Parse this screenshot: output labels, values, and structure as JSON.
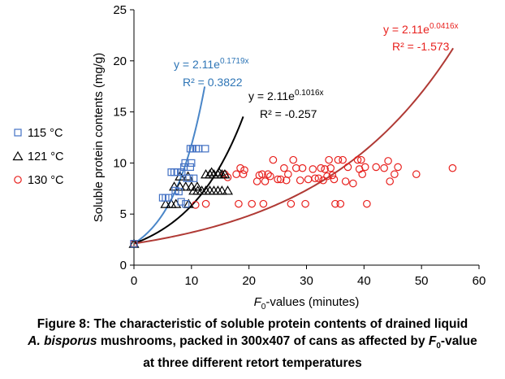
{
  "chart_data": {
    "type": "scatter",
    "xlabel_main": "F",
    "xlabel_sub": "0",
    "xlabel_rest": "-values (minutes)",
    "ylabel": "Soluble protein contents (mg/g)",
    "xlim": [
      0,
      60
    ],
    "ylim": [
      0,
      25
    ],
    "xticks": [
      0,
      10,
      20,
      30,
      40,
      50,
      60
    ],
    "yticks": [
      0,
      5,
      10,
      15,
      20,
      25
    ],
    "legend_position": "left",
    "series": [
      {
        "name": "115 °C",
        "marker": "square",
        "color": "#4472C4",
        "trend_color": "#4A86C8",
        "trend_a": 2.11,
        "trend_b": 0.1719,
        "trend_xmax": 12.3,
        "eq_base": "y = 2.11e",
        "eq_exp": "0.1719x",
        "r2": "R² = 0.3822",
        "points": [
          [
            0,
            2.1
          ],
          [
            5,
            6.6
          ],
          [
            5.5,
            6.6
          ],
          [
            6,
            6.6
          ],
          [
            6.5,
            9.1
          ],
          [
            7,
            9.1
          ],
          [
            7.5,
            9.1
          ],
          [
            7.2,
            7.3
          ],
          [
            7.8,
            7.2
          ],
          [
            8.3,
            9.1
          ],
          [
            8.7,
            9.6
          ],
          [
            8.9,
            10
          ],
          [
            9.2,
            8.5
          ],
          [
            9.6,
            8.5
          ],
          [
            9.8,
            9.6
          ],
          [
            10,
            10
          ],
          [
            10.4,
            8.5
          ],
          [
            10.2,
            11.4
          ],
          [
            10.8,
            11.4
          ],
          [
            9.8,
            11.4
          ],
          [
            11.2,
            11.4
          ],
          [
            12.4,
            11.4
          ],
          [
            8.2,
            6.2
          ],
          [
            9,
            6.0
          ]
        ]
      },
      {
        "name": "121 °C",
        "marker": "triangle",
        "color": "#000000",
        "trend_color": "#000000",
        "trend_a": 2.11,
        "trend_b": 0.1016,
        "trend_xmax": 19.0,
        "eq_base": "y = 2.11e",
        "eq_exp": "0.1016x",
        "r2": "R² = -0.257",
        "points": [
          [
            0,
            2.1
          ],
          [
            5.5,
            6.0
          ],
          [
            6.5,
            6.0
          ],
          [
            7.3,
            6.0
          ],
          [
            9.5,
            6.0
          ],
          [
            7,
            7.7
          ],
          [
            8,
            7.7
          ],
          [
            9,
            7.7
          ],
          [
            10,
            7.7
          ],
          [
            11,
            7.7
          ],
          [
            8,
            8.7
          ],
          [
            9.4,
            8.7
          ],
          [
            10.4,
            7.3
          ],
          [
            11.1,
            7.3
          ],
          [
            11.8,
            7.3
          ],
          [
            12.5,
            7.3
          ],
          [
            13.2,
            7.3
          ],
          [
            13.9,
            7.3
          ],
          [
            14.6,
            7.3
          ],
          [
            15.3,
            7.3
          ],
          [
            12.5,
            8.9
          ],
          [
            13.2,
            8.9
          ],
          [
            13.9,
            8.9
          ],
          [
            14.6,
            8.9
          ],
          [
            15.3,
            8.9
          ],
          [
            13.5,
            9.1
          ],
          [
            14.8,
            9.1
          ],
          [
            15.8,
            8.9
          ],
          [
            16.3,
            7.3
          ]
        ]
      },
      {
        "name": "130 °C",
        "marker": "circle",
        "color": "#E8211E",
        "trend_color": "#B03A35",
        "trend_a": 2.11,
        "trend_b": 0.0416,
        "trend_xmax": 55.5,
        "eq_base": "y = 2.11e",
        "eq_exp": "0.0416x",
        "r2": "R² = -1.573",
        "points": [
          [
            0,
            2.1
          ],
          [
            10.7,
            5.9
          ],
          [
            12.5,
            6.0
          ],
          [
            15.8,
            8.9
          ],
          [
            16.3,
            8.6
          ],
          [
            17.8,
            8.9
          ],
          [
            18.2,
            6.0
          ],
          [
            18.5,
            9.5
          ],
          [
            19,
            8.9
          ],
          [
            19.2,
            9.3
          ],
          [
            20.5,
            6.0
          ],
          [
            21.4,
            8.2
          ],
          [
            21.8,
            8.8
          ],
          [
            22.3,
            8.9
          ],
          [
            22.5,
            6.0
          ],
          [
            22.8,
            8.2
          ],
          [
            23.3,
            8.9
          ],
          [
            23.7,
            8.7
          ],
          [
            24.2,
            10.3
          ],
          [
            25,
            8.4
          ],
          [
            25.5,
            8.4
          ],
          [
            26.1,
            9.5
          ],
          [
            26.5,
            8.3
          ],
          [
            26.8,
            8.9
          ],
          [
            27.3,
            6.0
          ],
          [
            27.7,
            10.3
          ],
          [
            28.2,
            9.5
          ],
          [
            28.9,
            8.3
          ],
          [
            29.3,
            9.5
          ],
          [
            29.8,
            6.0
          ],
          [
            30.3,
            8.4
          ],
          [
            31.1,
            9.4
          ],
          [
            31.5,
            8.5
          ],
          [
            32.1,
            8.5
          ],
          [
            32.5,
            9.5
          ],
          [
            32.9,
            8.3
          ],
          [
            33.2,
            9.4
          ],
          [
            33.6,
            8.7
          ],
          [
            33.9,
            10.3
          ],
          [
            34.2,
            9.5
          ],
          [
            34.5,
            8.8
          ],
          [
            34.8,
            8.4
          ],
          [
            35,
            6.0
          ],
          [
            35.5,
            10.3
          ],
          [
            35.9,
            6.0
          ],
          [
            36.3,
            10.3
          ],
          [
            36.8,
            8.2
          ],
          [
            37.2,
            9.6
          ],
          [
            38.1,
            8.0
          ],
          [
            38.9,
            10.3
          ],
          [
            39.2,
            9.4
          ],
          [
            39.5,
            10.3
          ],
          [
            39.7,
            8.9
          ],
          [
            40.2,
            9.6
          ],
          [
            40.5,
            6.0
          ],
          [
            42.1,
            9.6
          ],
          [
            43.5,
            9.5
          ],
          [
            44.5,
            8.2
          ],
          [
            44.2,
            10.2
          ],
          [
            45.3,
            8.9
          ],
          [
            45.9,
            9.6
          ],
          [
            49.1,
            8.9
          ],
          [
            55.4,
            9.5
          ]
        ]
      }
    ]
  },
  "caption": {
    "line1": "Figure 8: The characteristic of soluble protein contents of drained liquid",
    "line2_italic": "A. bisporus",
    "line2_mid": " mushrooms, packed in 300x407 of cans as affected by ",
    "line2_f": "F",
    "line2_sub": "0",
    "line2_end": "-value",
    "line3": "at three different retort temperatures"
  }
}
